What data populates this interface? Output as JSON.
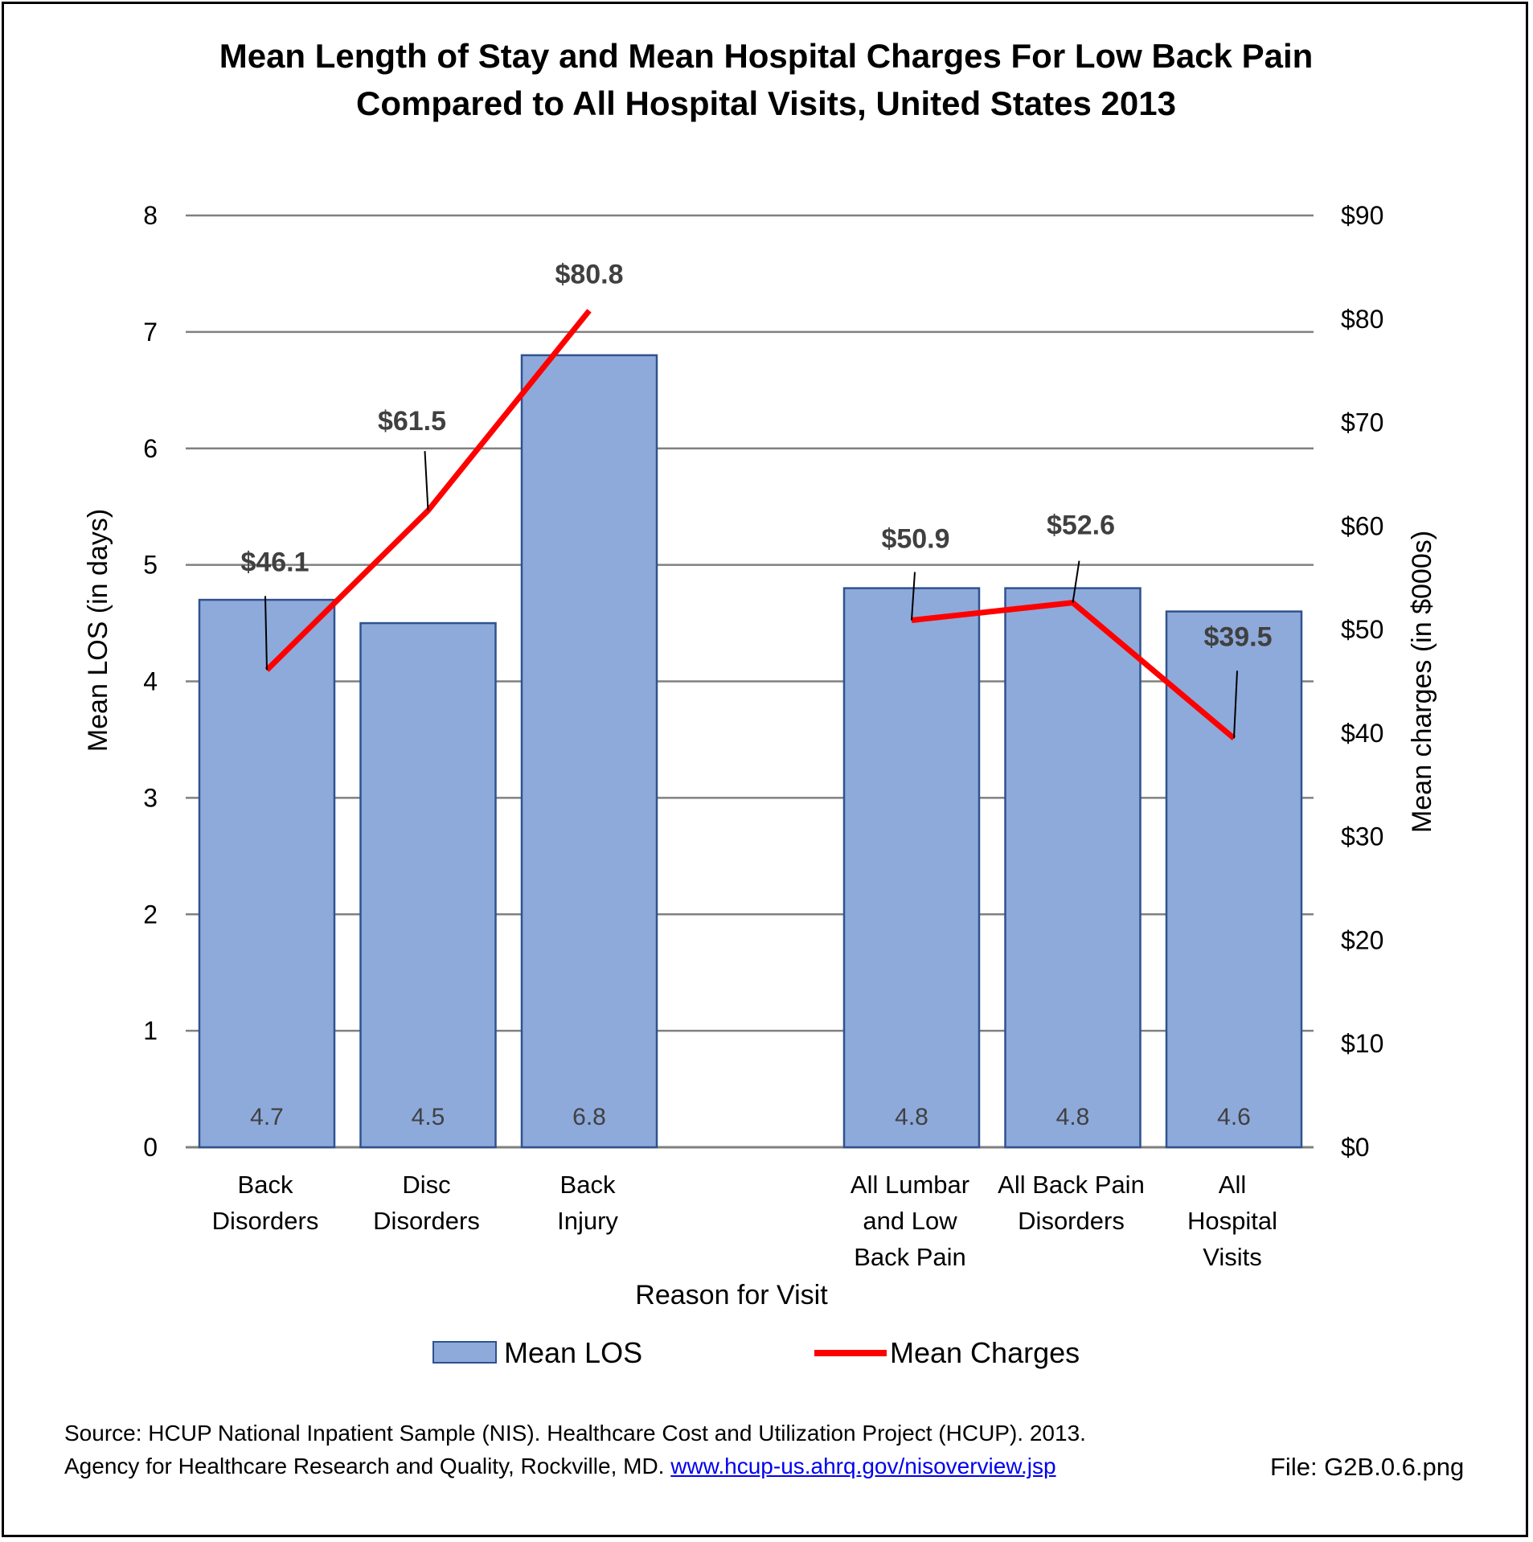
{
  "chart_data": {
    "type": "bar",
    "title": [
      "Mean Length of Stay and Mean Hospital Charges For Low Back Pain",
      "Compared to All Hospital Visits, United States 2013"
    ],
    "xlabel": "Reason for Visit",
    "ylabel": "Mean LOS (in days)",
    "y2label": "Mean charges (in $000s)",
    "ylim": [
      0,
      8
    ],
    "y2lim": [
      0,
      90
    ],
    "yticks": [
      "0",
      "1",
      "2",
      "3",
      "4",
      "5",
      "6",
      "7",
      "8"
    ],
    "y2ticks": [
      "$0",
      "$10",
      "$20",
      "$30",
      "$40",
      "$50",
      "$60",
      "$70",
      "$80",
      "$90"
    ],
    "grid": true,
    "legend_position": "bottom",
    "categories": [
      [
        "Back",
        "Disorders"
      ],
      [
        "Disc",
        "Disorders"
      ],
      [
        "Back",
        "Injury"
      ],
      [
        "All Lumbar",
        "and Low",
        "Back Pain"
      ],
      [
        "All Back Pain",
        "Disorders"
      ],
      [
        "All",
        "Hospital",
        "Visits"
      ]
    ],
    "series": [
      {
        "name": "Mean LOS",
        "type": "bar",
        "axis": "left",
        "color": "#8eaadb",
        "values": [
          4.7,
          4.5,
          6.8,
          4.8,
          4.8,
          4.6
        ],
        "labels": [
          "4.7",
          "4.5",
          "6.8",
          "4.8",
          "4.8",
          "4.6"
        ]
      },
      {
        "name": "Mean Charges",
        "type": "line",
        "axis": "right",
        "color": "#ff0000",
        "segments": [
          [
            0,
            2
          ],
          [
            3,
            5
          ]
        ],
        "values": [
          46.1,
          61.5,
          80.8,
          50.9,
          52.6,
          39.5
        ],
        "labels": [
          "$46.1",
          "$61.5",
          "$80.8",
          "$50.9",
          "$52.6",
          "$39.5"
        ]
      }
    ]
  },
  "source": {
    "text_before_link": "Source: HCUP National Inpatient Sample (NIS). Healthcare Cost and Utilization Project (HCUP). 2013. Agency for Healthcare Research and Quality, Rockville, MD. ",
    "link_text": "www.hcup-us.ahrq.gov/nisoverview.jsp"
  },
  "file_label": "File: G2B.0.6.png"
}
